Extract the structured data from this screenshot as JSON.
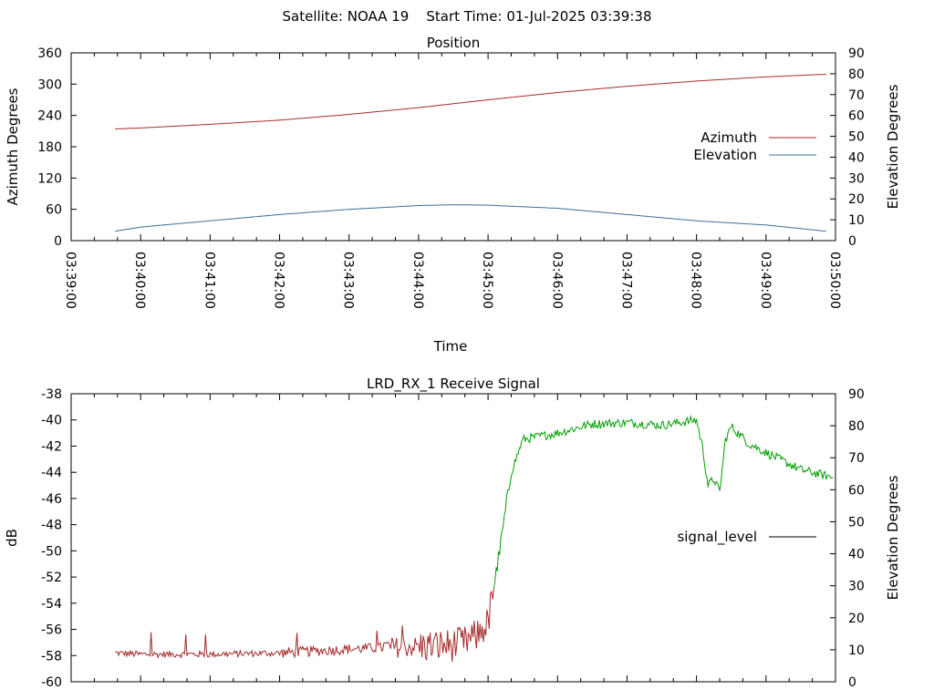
{
  "header": {
    "title": "Satellite: NOAA 19    Start Time: 01-Jul-2025 03:39:38"
  },
  "chart_data": [
    {
      "type": "line",
      "title": "Position",
      "xlabel": "Time",
      "ylabel": "Azimuth Degrees",
      "y2label": "Elevation Degrees",
      "xlim": [
        "03:39:00",
        "03:50:00"
      ],
      "x_ticks": [
        "03:39:00",
        "03:40:00",
        "03:41:00",
        "03:42:00",
        "03:43:00",
        "03:44:00",
        "03:45:00",
        "03:46:00",
        "03:47:00",
        "03:48:00",
        "03:49:00",
        "03:50:00"
      ],
      "ylim": [
        0,
        360
      ],
      "y_ticks": [
        "0",
        "60",
        "120",
        "180",
        "240",
        "300",
        "360"
      ],
      "y2lim": [
        0,
        90
      ],
      "y2_ticks": [
        "0",
        "10",
        "20",
        "30",
        "40",
        "50",
        "60",
        "70",
        "80",
        "90"
      ],
      "legend": "right",
      "series": [
        {
          "name": "Azimuth",
          "axis": "y1",
          "color": "#a52a2a",
          "x": [
            "03:39:38",
            "03:40:00",
            "03:41:00",
            "03:42:00",
            "03:43:00",
            "03:44:00",
            "03:45:00",
            "03:46:00",
            "03:47:00",
            "03:48:00",
            "03:49:00",
            "03:49:52"
          ],
          "values": [
            214,
            216,
            223,
            231,
            242,
            255,
            270,
            284,
            296,
            306,
            314,
            319
          ]
        },
        {
          "name": "Elevation",
          "axis": "y2",
          "color": "#3a6e9a",
          "x": [
            "03:39:38",
            "03:40:00",
            "03:41:00",
            "03:42:00",
            "03:43:00",
            "03:44:00",
            "03:44:30",
            "03:45:00",
            "03:46:00",
            "03:47:00",
            "03:48:00",
            "03:49:00",
            "03:49:52"
          ],
          "values": [
            4.5,
            6.5,
            9.5,
            12.5,
            15,
            16.8,
            17.2,
            17,
            15.5,
            12.5,
            9.5,
            7.5,
            4.5
          ]
        }
      ]
    },
    {
      "type": "line",
      "title": "LRD_RX_1 Receive Signal",
      "ylabel": "dB",
      "y2label": "Elevation Degrees",
      "xlim": [
        "03:39:00",
        "03:50:00"
      ],
      "ylim": [
        -60,
        -38
      ],
      "y_ticks": [
        "-60",
        "-58",
        "-56",
        "-54",
        "-52",
        "-50",
        "-48",
        "-46",
        "-44",
        "-42",
        "-40",
        "-38"
      ],
      "y2lim": [
        0,
        90
      ],
      "y2_ticks": [
        "0",
        "10",
        "20",
        "30",
        "40",
        "50",
        "60",
        "70",
        "80",
        "90"
      ],
      "legend": "right",
      "series": [
        {
          "name": "signal_level",
          "color": "#000000",
          "low_color": "#a52a2a",
          "high_color": "#00a000",
          "x": [
            "03:39:38",
            "03:40:00",
            "03:41:00",
            "03:42:00",
            "03:43:00",
            "03:44:00",
            "03:44:30",
            "03:44:40",
            "03:44:50",
            "03:45:00",
            "03:45:10",
            "03:45:20",
            "03:45:30",
            "03:46:00",
            "03:46:30",
            "03:47:00",
            "03:47:30",
            "03:48:00",
            "03:48:05",
            "03:48:10",
            "03:48:15",
            "03:48:20",
            "03:48:25",
            "03:48:30",
            "03:48:45",
            "03:49:00",
            "03:49:30",
            "03:49:58"
          ],
          "values": [
            -57.8,
            -57.9,
            -57.9,
            -57.8,
            -57.5,
            -57.3,
            -57.2,
            -57.0,
            -56.5,
            -55.5,
            -50.0,
            -44.0,
            -41.5,
            -41.0,
            -40.3,
            -40.2,
            -40.4,
            -40.0,
            -42.0,
            -45.0,
            -44.5,
            -45.5,
            -41.5,
            -40.5,
            -41.8,
            -42.5,
            -43.8,
            -44.4
          ]
        }
      ]
    }
  ]
}
